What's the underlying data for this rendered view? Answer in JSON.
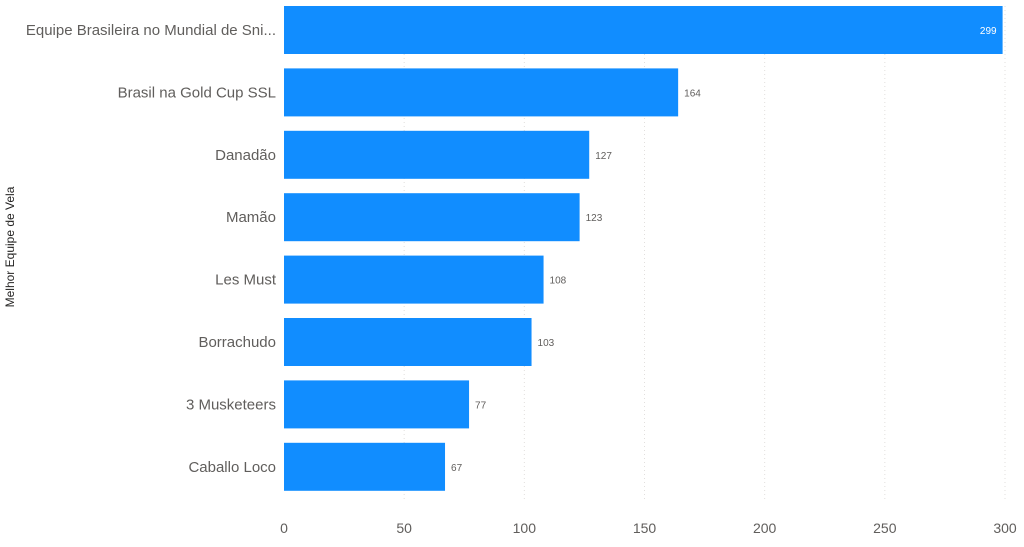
{
  "chart_data": {
    "type": "bar",
    "orientation": "horizontal",
    "title": "",
    "ylabel": "Melhor Equipe de Vela",
    "xlabel": "",
    "categories": [
      "Equipe Brasileira no Mundial de Sni...",
      "Brasil na Gold Cup SSL",
      "Danadão",
      "Mamão",
      "Les Must",
      "Borrachudo",
      "3 Musketeers",
      "Caballo Loco"
    ],
    "values": [
      299,
      164,
      127,
      123,
      108,
      103,
      77,
      67
    ],
    "xlim": [
      0,
      300
    ],
    "xticks": [
      0,
      50,
      100,
      150,
      200,
      250,
      300
    ],
    "grid": "vertical dotted",
    "colors": {
      "bar": "#118DFF",
      "label_outside": "#605e5c",
      "label_inside": "#ffffff",
      "grid": "#e1dfdd"
    }
  }
}
